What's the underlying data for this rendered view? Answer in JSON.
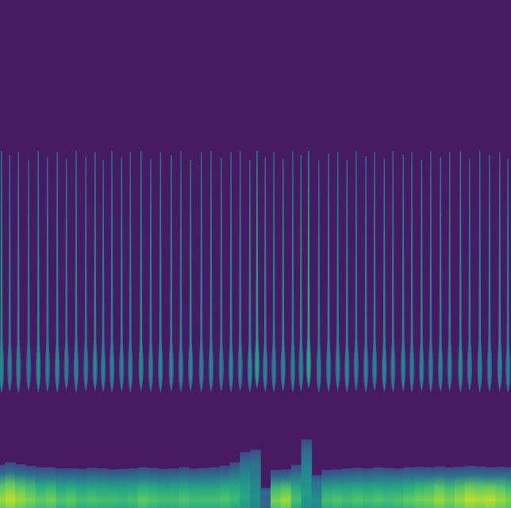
{
  "chart_data": {
    "type": "spectrogram",
    "tick_labels": false,
    "xlim": [
      0,
      100
    ],
    "ylim": [
      0,
      100
    ],
    "color_range": [
      0,
      1
    ],
    "pulses": {
      "x": [
        0.3,
        1.9,
        3.6,
        5.6,
        7.5,
        9.3,
        11.2,
        13.0,
        14.9,
        16.8,
        18.6,
        20.2,
        21.9,
        23.8,
        25.5,
        27.6,
        29.5,
        31.4,
        33.5,
        35.4,
        37.3,
        39.4,
        41.3,
        43.3,
        45.2,
        47.0,
        48.9,
        50.3,
        51.9,
        53.6,
        55.4,
        57.3,
        58.9,
        60.4,
        62.4,
        64.3,
        66.1,
        67.9,
        69.7,
        71.6,
        73.3,
        75.2,
        76.9,
        78.9,
        80.6,
        82.5,
        84.3,
        86.2,
        88.0,
        90.1,
        91.9,
        93.9,
        95.8,
        97.8,
        99.4
      ],
      "top": [
        70.3,
        69.5,
        70.0,
        68.5,
        70.3,
        69.0,
        70.0,
        68.8,
        70.3,
        69.2,
        70.0,
        68.5,
        70.3,
        69.0,
        70.0,
        70.3,
        68.8,
        70.0,
        69.5,
        70.3,
        68.6,
        70.0,
        70.3,
        69.0,
        70.0,
        70.3,
        68.5,
        70.3,
        69.0,
        70.0,
        68.8,
        70.3,
        69.5,
        70.3,
        68.4,
        69.8,
        70.0,
        68.6,
        70.3,
        69.2,
        70.0,
        68.8,
        70.3,
        69.5,
        70.0,
        68.6,
        70.3,
        69.0,
        70.0,
        70.3,
        68.8,
        70.3,
        69.5,
        70.0,
        68.8
      ],
      "bottom": [
        22.7,
        22.8,
        22.6,
        23.0,
        22.7,
        22.8,
        22.7,
        23.2,
        22.7,
        22.9,
        23.0,
        22.8,
        22.7,
        22.9,
        22.7,
        23.0,
        22.8,
        22.7,
        22.9,
        22.7,
        23.0,
        22.7,
        22.8,
        22.9,
        22.7,
        23.0,
        22.7,
        23.5,
        22.8,
        22.7,
        23.0,
        22.7,
        22.9,
        23.6,
        22.7,
        22.8,
        23.0,
        22.7,
        22.9,
        22.7,
        23.0,
        22.8,
        22.7,
        22.9,
        22.7,
        23.0,
        22.7,
        22.8,
        22.9,
        22.7,
        23.0,
        22.7,
        22.8,
        22.9,
        22.7
      ],
      "intensity": [
        0.45,
        0.42,
        0.44,
        0.4,
        0.46,
        0.43,
        0.45,
        0.42,
        0.44,
        0.41,
        0.45,
        0.42,
        0.44,
        0.43,
        0.42,
        0.46,
        0.43,
        0.45,
        0.44,
        0.42,
        0.45,
        0.43,
        0.44,
        0.42,
        0.45,
        0.43,
        0.46,
        0.55,
        0.44,
        0.42,
        0.45,
        0.43,
        0.44,
        0.58,
        0.42,
        0.44,
        0.43,
        0.45,
        0.42,
        0.44,
        0.43,
        0.45,
        0.42,
        0.44,
        0.43,
        0.45,
        0.42,
        0.44,
        0.43,
        0.45,
        0.42,
        0.44,
        0.43,
        0.45,
        0.42
      ]
    },
    "low_band": {
      "x": [
        0,
        2,
        4,
        6,
        8,
        10,
        12,
        14,
        16,
        18,
        20,
        22,
        24,
        26,
        28,
        30,
        32,
        34,
        36,
        38,
        40,
        42,
        44,
        46,
        48,
        50,
        52,
        54,
        56,
        58,
        60,
        62,
        64,
        66,
        68,
        70,
        72,
        74,
        76,
        78,
        80,
        82,
        84,
        86,
        88,
        90,
        92,
        94,
        96,
        98,
        100
      ],
      "top": [
        8.5,
        9.0,
        8.6,
        8.3,
        8.0,
        8.0,
        7.8,
        7.8,
        7.7,
        7.9,
        7.8,
        7.6,
        7.7,
        7.8,
        8.0,
        7.9,
        7.7,
        7.8,
        8.0,
        7.8,
        7.9,
        8.0,
        8.3,
        9.0,
        11.0,
        11.5,
        4.0,
        7.5,
        7.6,
        8.5,
        13.5,
        6.5,
        7.5,
        7.6,
        7.8,
        7.9,
        7.8,
        8.0,
        7.9,
        7.8,
        8.0,
        8.1,
        8.0,
        8.2,
        8.0,
        8.1,
        8.3,
        8.2,
        8.0,
        8.1,
        8.0
      ],
      "intensity": [
        0.85,
        0.9,
        0.85,
        0.8,
        0.75,
        0.78,
        0.72,
        0.75,
        0.7,
        0.72,
        0.7,
        0.7,
        0.68,
        0.7,
        0.75,
        0.72,
        0.7,
        0.7,
        0.72,
        0.7,
        0.7,
        0.7,
        0.72,
        0.68,
        0.6,
        0.5,
        0.35,
        0.8,
        0.85,
        0.7,
        0.55,
        0.5,
        0.7,
        0.72,
        0.7,
        0.72,
        0.7,
        0.72,
        0.7,
        0.72,
        0.75,
        0.78,
        0.8,
        0.85,
        0.8,
        0.85,
        0.9,
        0.88,
        0.9,
        0.85,
        0.8
      ]
    }
  }
}
